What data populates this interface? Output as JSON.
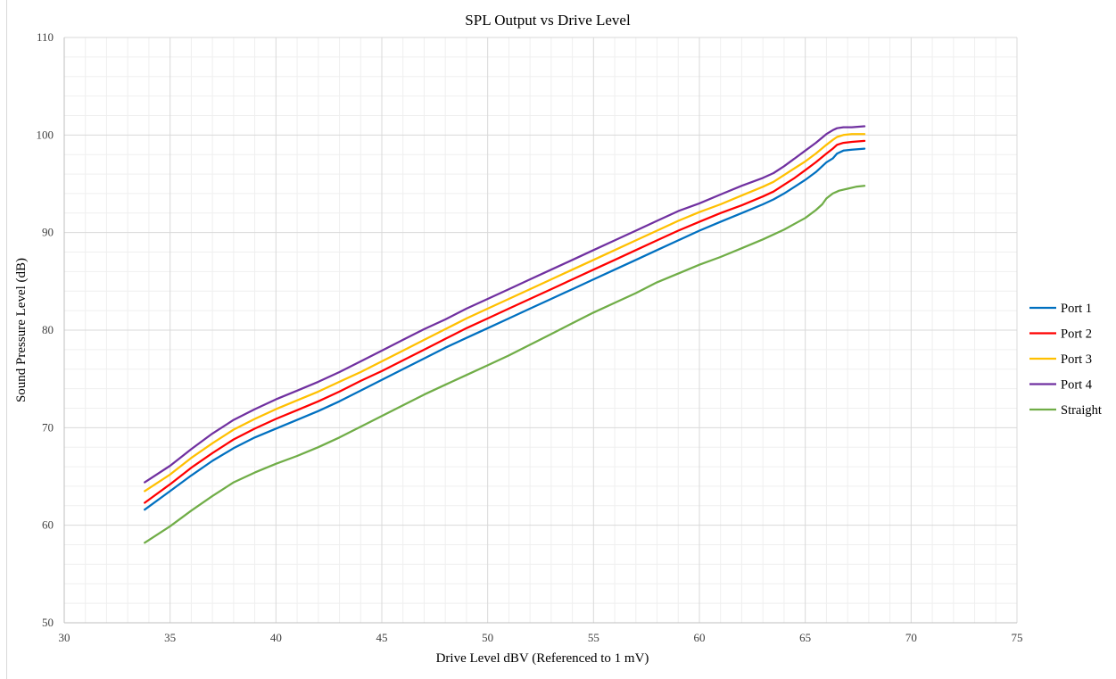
{
  "chart_data": {
    "type": "line",
    "title": "SPL Output vs Drive Level",
    "xlabel": "Drive Level dBV (Referenced to 1 mV)",
    "ylabel": "Sound Pressure Level (dB)",
    "xlim": [
      30,
      75
    ],
    "ylim": [
      50,
      110
    ],
    "x_ticks": [
      30,
      35,
      40,
      45,
      50,
      55,
      60,
      65,
      70,
      75
    ],
    "y_ticks": [
      50,
      60,
      70,
      80,
      90,
      100,
      110
    ],
    "x_tick_labels": [
      "30",
      "35",
      "40",
      "45",
      "50",
      "55",
      "60",
      "65",
      "70",
      "75"
    ],
    "y_tick_labels": [
      "50",
      "60",
      "70",
      "80",
      "90",
      "100",
      "110"
    ],
    "x_minor_step": 1,
    "y_minor_step": 2,
    "grid": true,
    "legend_position": "right",
    "series": [
      {
        "name": "Port 1",
        "color": "#0070C0",
        "points": [
          [
            33.8,
            61.6
          ],
          [
            35,
            63.5
          ],
          [
            36,
            65.1
          ],
          [
            37,
            66.6
          ],
          [
            38,
            67.9
          ],
          [
            39,
            69.0
          ],
          [
            40,
            69.9
          ],
          [
            41,
            70.8
          ],
          [
            42,
            71.7
          ],
          [
            43,
            72.7
          ],
          [
            44,
            73.8
          ],
          [
            45,
            74.9
          ],
          [
            46,
            76.0
          ],
          [
            47,
            77.1
          ],
          [
            48,
            78.2
          ],
          [
            49,
            79.2
          ],
          [
            50,
            80.2
          ],
          [
            51,
            81.2
          ],
          [
            52,
            82.2
          ],
          [
            53,
            83.2
          ],
          [
            54,
            84.2
          ],
          [
            55,
            85.2
          ],
          [
            56,
            86.2
          ],
          [
            57,
            87.2
          ],
          [
            58,
            88.2
          ],
          [
            59,
            89.2
          ],
          [
            60,
            90.2
          ],
          [
            61,
            91.1
          ],
          [
            62,
            92.0
          ],
          [
            63,
            92.9
          ],
          [
            63.5,
            93.4
          ],
          [
            64,
            94.0
          ],
          [
            64.5,
            94.7
          ],
          [
            65,
            95.4
          ],
          [
            65.5,
            96.2
          ],
          [
            66,
            97.2
          ],
          [
            66.3,
            97.6
          ],
          [
            66.5,
            98.1
          ],
          [
            66.8,
            98.4
          ],
          [
            67.2,
            98.5
          ],
          [
            67.8,
            98.6
          ]
        ]
      },
      {
        "name": "Port 2",
        "color": "#FF0000",
        "points": [
          [
            33.8,
            62.3
          ],
          [
            35,
            64.2
          ],
          [
            36,
            65.9
          ],
          [
            37,
            67.4
          ],
          [
            38,
            68.8
          ],
          [
            39,
            69.9
          ],
          [
            40,
            70.9
          ],
          [
            41,
            71.8
          ],
          [
            42,
            72.7
          ],
          [
            43,
            73.7
          ],
          [
            44,
            74.8
          ],
          [
            45,
            75.8
          ],
          [
            46,
            76.9
          ],
          [
            47,
            78.0
          ],
          [
            48,
            79.1
          ],
          [
            49,
            80.2
          ],
          [
            50,
            81.2
          ],
          [
            51,
            82.2
          ],
          [
            52,
            83.2
          ],
          [
            53,
            84.2
          ],
          [
            54,
            85.2
          ],
          [
            55,
            86.2
          ],
          [
            56,
            87.2
          ],
          [
            57,
            88.2
          ],
          [
            58,
            89.2
          ],
          [
            59,
            90.2
          ],
          [
            60,
            91.1
          ],
          [
            61,
            92.0
          ],
          [
            62,
            92.8
          ],
          [
            63,
            93.7
          ],
          [
            63.5,
            94.2
          ],
          [
            64,
            94.9
          ],
          [
            64.5,
            95.6
          ],
          [
            65,
            96.4
          ],
          [
            65.5,
            97.2
          ],
          [
            66,
            98.1
          ],
          [
            66.3,
            98.6
          ],
          [
            66.5,
            99.0
          ],
          [
            66.8,
            99.2
          ],
          [
            67.2,
            99.3
          ],
          [
            67.8,
            99.4
          ]
        ]
      },
      {
        "name": "Port 3",
        "color": "#FFC000",
        "points": [
          [
            33.8,
            63.5
          ],
          [
            35,
            65.2
          ],
          [
            36,
            66.9
          ],
          [
            37,
            68.4
          ],
          [
            38,
            69.8
          ],
          [
            39,
            70.9
          ],
          [
            40,
            71.9
          ],
          [
            41,
            72.8
          ],
          [
            42,
            73.7
          ],
          [
            43,
            74.7
          ],
          [
            44,
            75.7
          ],
          [
            45,
            76.8
          ],
          [
            46,
            77.9
          ],
          [
            47,
            79.0
          ],
          [
            48,
            80.1
          ],
          [
            49,
            81.2
          ],
          [
            50,
            82.2
          ],
          [
            51,
            83.2
          ],
          [
            52,
            84.2
          ],
          [
            53,
            85.2
          ],
          [
            54,
            86.2
          ],
          [
            55,
            87.2
          ],
          [
            56,
            88.2
          ],
          [
            57,
            89.2
          ],
          [
            58,
            90.2
          ],
          [
            59,
            91.2
          ],
          [
            60,
            92.1
          ],
          [
            61,
            92.9
          ],
          [
            62,
            93.8
          ],
          [
            63,
            94.7
          ],
          [
            63.5,
            95.2
          ],
          [
            64,
            95.9
          ],
          [
            64.5,
            96.6
          ],
          [
            65,
            97.3
          ],
          [
            65.5,
            98.1
          ],
          [
            66,
            99.0
          ],
          [
            66.3,
            99.5
          ],
          [
            66.5,
            99.8
          ],
          [
            66.8,
            100.0
          ],
          [
            67.2,
            100.1
          ],
          [
            67.8,
            100.1
          ]
        ]
      },
      {
        "name": "Port 4",
        "color": "#7030A0",
        "points": [
          [
            33.8,
            64.4
          ],
          [
            35,
            66.1
          ],
          [
            36,
            67.8
          ],
          [
            37,
            69.4
          ],
          [
            38,
            70.8
          ],
          [
            39,
            71.9
          ],
          [
            40,
            72.9
          ],
          [
            41,
            73.8
          ],
          [
            42,
            74.7
          ],
          [
            43,
            75.7
          ],
          [
            44,
            76.8
          ],
          [
            45,
            77.9
          ],
          [
            46,
            79.0
          ],
          [
            47,
            80.1
          ],
          [
            48,
            81.1
          ],
          [
            49,
            82.2
          ],
          [
            50,
            83.2
          ],
          [
            51,
            84.2
          ],
          [
            52,
            85.2
          ],
          [
            53,
            86.2
          ],
          [
            54,
            87.2
          ],
          [
            55,
            88.2
          ],
          [
            56,
            89.2
          ],
          [
            57,
            90.2
          ],
          [
            58,
            91.2
          ],
          [
            59,
            92.2
          ],
          [
            60,
            93.0
          ],
          [
            61,
            93.9
          ],
          [
            62,
            94.8
          ],
          [
            63,
            95.6
          ],
          [
            63.5,
            96.1
          ],
          [
            64,
            96.8
          ],
          [
            64.5,
            97.6
          ],
          [
            65,
            98.4
          ],
          [
            65.5,
            99.2
          ],
          [
            66,
            100.1
          ],
          [
            66.3,
            100.5
          ],
          [
            66.5,
            100.7
          ],
          [
            66.8,
            100.8
          ],
          [
            67.2,
            100.8
          ],
          [
            67.8,
            100.9
          ]
        ]
      },
      {
        "name": "Straight",
        "color": "#70AD47",
        "points": [
          [
            33.8,
            58.2
          ],
          [
            35,
            59.9
          ],
          [
            36,
            61.5
          ],
          [
            37,
            63.0
          ],
          [
            38,
            64.4
          ],
          [
            39,
            65.4
          ],
          [
            40,
            66.3
          ],
          [
            41,
            67.1
          ],
          [
            42,
            68.0
          ],
          [
            43,
            69.0
          ],
          [
            44,
            70.1
          ],
          [
            45,
            71.2
          ],
          [
            46,
            72.3
          ],
          [
            47,
            73.4
          ],
          [
            48,
            74.4
          ],
          [
            49,
            75.4
          ],
          [
            50,
            76.4
          ],
          [
            51,
            77.4
          ],
          [
            52,
            78.5
          ],
          [
            53,
            79.6
          ],
          [
            54,
            80.7
          ],
          [
            55,
            81.8
          ],
          [
            56,
            82.8
          ],
          [
            57,
            83.8
          ],
          [
            58,
            84.9
          ],
          [
            59,
            85.8
          ],
          [
            60,
            86.7
          ],
          [
            61,
            87.5
          ],
          [
            62,
            88.4
          ],
          [
            63,
            89.3
          ],
          [
            64,
            90.3
          ],
          [
            64.5,
            90.9
          ],
          [
            65,
            91.5
          ],
          [
            65.5,
            92.3
          ],
          [
            65.8,
            92.9
          ],
          [
            66,
            93.5
          ],
          [
            66.3,
            94.0
          ],
          [
            66.6,
            94.3
          ],
          [
            67,
            94.5
          ],
          [
            67.4,
            94.7
          ],
          [
            67.8,
            94.8
          ]
        ]
      }
    ]
  }
}
